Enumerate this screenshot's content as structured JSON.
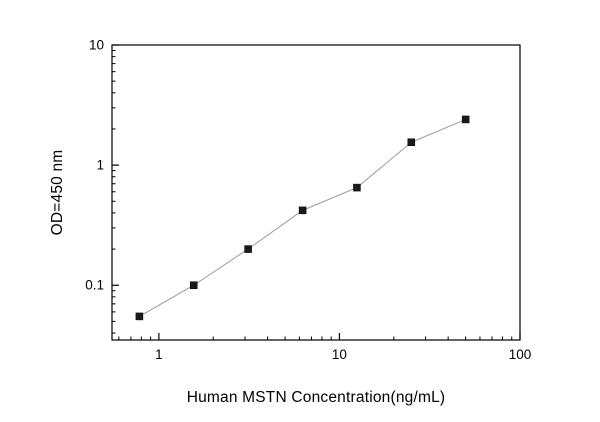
{
  "chart_data": {
    "type": "scatter",
    "title": "",
    "xlabel": "Human MSTN Concentration(ng/mL)",
    "ylabel": "OD=450 nm",
    "x_scale": "log",
    "y_scale": "log",
    "xlim": [
      0.55,
      100
    ],
    "ylim": [
      0.035,
      10
    ],
    "x_ticks": [
      1,
      10,
      100
    ],
    "y_ticks": [
      0.1,
      1,
      10
    ],
    "x": [
      0.78,
      1.56,
      3.12,
      6.25,
      12.5,
      25,
      50
    ],
    "y": [
      0.055,
      0.1,
      0.2,
      0.42,
      0.65,
      1.55,
      2.4
    ],
    "marker": "filled-square",
    "marker_color": "#1a1a1a",
    "line_color": "#9a9a9a",
    "frame_color": "#000000",
    "background": "#ffffff",
    "legend": "none",
    "grid": "off"
  }
}
